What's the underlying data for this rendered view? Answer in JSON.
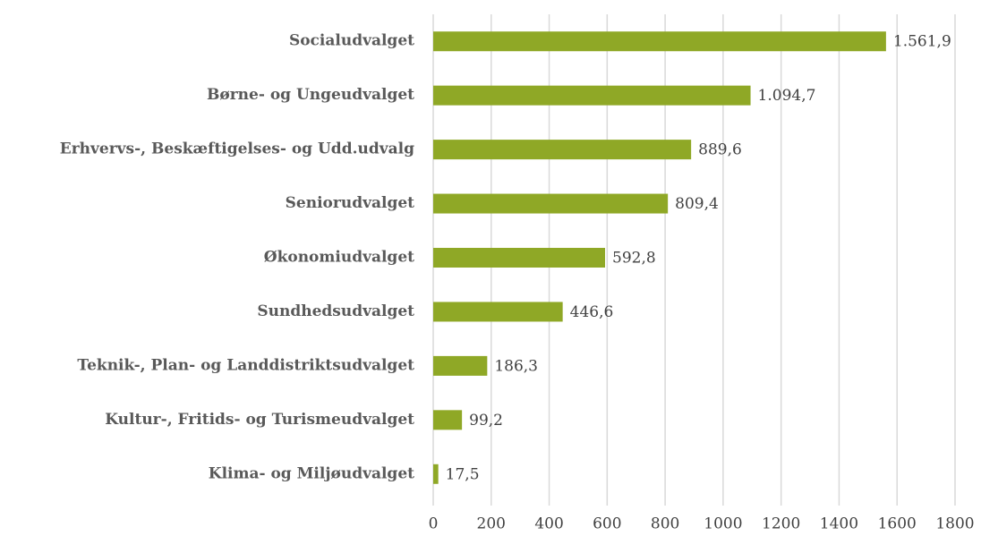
{
  "chart_data": {
    "type": "bar",
    "orientation": "horizontal",
    "categories": [
      "Socialudvalget",
      "Børne- og Ungeudvalget",
      "Erhvervs-, Beskæftigelses- og Udd.udvalg",
      "Seniorudvalget",
      "Økonomiudvalget",
      "Sundhedsudvalget",
      "Teknik-, Plan- og Landdistriktsudvalget",
      "Kultur-, Fritids- og Turismeudvalget",
      "Klima- og Miljøudvalget"
    ],
    "values": [
      1561.9,
      1094.7,
      889.6,
      809.4,
      592.8,
      446.6,
      186.3,
      99.2,
      17.5
    ],
    "value_labels": [
      "1.561,9",
      "1.094,7",
      "889,6",
      "809,4",
      "592,8",
      "446,6",
      "186,3",
      "99,2",
      "17,5"
    ],
    "color": "#8fa826",
    "xlim": [
      0,
      1800
    ],
    "xticks": [
      0,
      200,
      400,
      600,
      800,
      1000,
      1200,
      1400,
      1600,
      1800
    ],
    "grid": true
  }
}
